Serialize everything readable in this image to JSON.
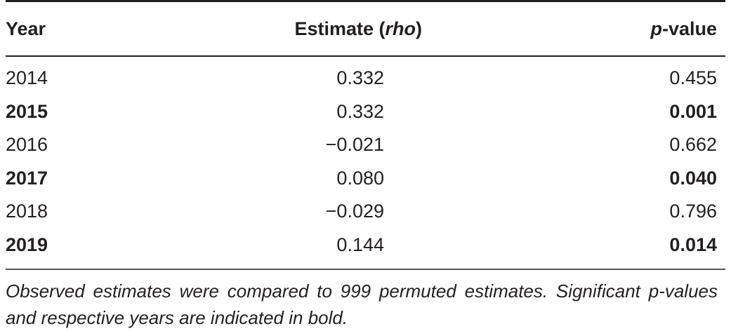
{
  "table": {
    "headers": {
      "year": "Year",
      "estimate_main": "Estimate (",
      "estimate_italic": "rho",
      "estimate_close": ")",
      "p_italic": "p",
      "p_rest": "-value"
    },
    "rows": [
      {
        "year": "2014",
        "estimate": "0.332",
        "p": "0.455",
        "significant": false
      },
      {
        "year": "2015",
        "estimate": "0.332",
        "p": "0.001",
        "significant": true
      },
      {
        "year": "2016",
        "estimate": "−0.021",
        "p": "0.662",
        "significant": false
      },
      {
        "year": "2017",
        "estimate": "0.080",
        "p": "0.040",
        "significant": true
      },
      {
        "year": "2018",
        "estimate": "−0.029",
        "p": "0.796",
        "significant": false
      },
      {
        "year": "2019",
        "estimate": "0.144",
        "p": "0.014",
        "significant": true
      }
    ],
    "note": "Observed estimates were compared to 999 permuted estimates. Significant p-values and respective years are indicated in bold."
  }
}
